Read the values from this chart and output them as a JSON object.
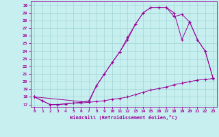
{
  "xlabel": "Windchill (Refroidissement éolien,°C)",
  "bg_color": "#c8efef",
  "grid_color": "#a0d4d4",
  "line_color": "#990099",
  "x_ticks": [
    0,
    1,
    2,
    3,
    4,
    5,
    6,
    7,
    8,
    9,
    10,
    11,
    12,
    13,
    14,
    15,
    16,
    17,
    18,
    19,
    20,
    21,
    22,
    23
  ],
  "y_ticks": [
    17,
    18,
    19,
    20,
    21,
    22,
    23,
    24,
    25,
    26,
    27,
    28,
    29,
    30
  ],
  "ylim": [
    16.7,
    30.5
  ],
  "xlim": [
    -0.5,
    23.5
  ],
  "line1_x": [
    0,
    1,
    2,
    3,
    4,
    5,
    6,
    7,
    8,
    9,
    10,
    11,
    12,
    13,
    14,
    15,
    16,
    17,
    18,
    19,
    20,
    21,
    22,
    23
  ],
  "line1_y": [
    18.0,
    17.5,
    17.0,
    17.0,
    17.1,
    17.2,
    17.2,
    17.3,
    17.4,
    17.5,
    17.7,
    17.8,
    18.0,
    18.3,
    18.6,
    18.9,
    19.1,
    19.3,
    19.6,
    19.8,
    20.0,
    20.2,
    20.3,
    20.4
  ],
  "line2_x": [
    0,
    1,
    2,
    3,
    4,
    5,
    6,
    7,
    8,
    9,
    10,
    11,
    12,
    13,
    14,
    15,
    16,
    17,
    18,
    19,
    20,
    21,
    22,
    23
  ],
  "line2_y": [
    18.0,
    17.5,
    17.0,
    17.0,
    17.1,
    17.2,
    17.3,
    17.5,
    19.5,
    21.0,
    22.5,
    23.9,
    25.5,
    27.5,
    29.0,
    29.7,
    29.7,
    29.7,
    29.0,
    25.5,
    27.8,
    25.5,
    24.0,
    20.5
  ],
  "line3_x": [
    0,
    7,
    8,
    9,
    10,
    11,
    12,
    13,
    14,
    15,
    16,
    17,
    18,
    19,
    20,
    21,
    22,
    23
  ],
  "line3_y": [
    18.0,
    17.3,
    19.5,
    21.0,
    22.5,
    23.9,
    25.8,
    27.5,
    29.0,
    29.7,
    29.7,
    29.7,
    28.5,
    28.8,
    27.8,
    25.5,
    24.0,
    20.5
  ]
}
